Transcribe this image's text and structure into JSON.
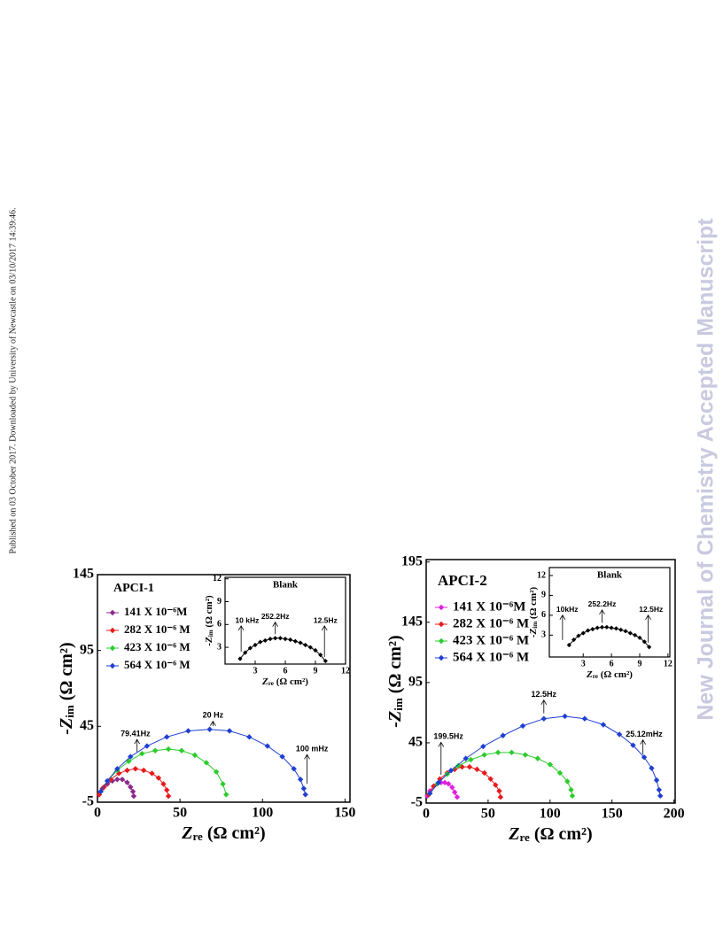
{
  "side_note": "Published on 03 October 2017. Downloaded by University of Newcastle on 03/10/2017 14:39:46.",
  "watermark": "New Journal of Chemistry Accepted Manuscript",
  "chart_data": [
    {
      "type": "line",
      "title": "APCI-1",
      "x_label": [
        "Z",
        "re",
        " (Ω cm²)"
      ],
      "y_label": [
        "-Z",
        "im",
        " (Ω cm²)"
      ],
      "xlim": [
        0,
        153
      ],
      "ylim": [
        -5,
        145
      ],
      "xticks": [
        0,
        50,
        100,
        150
      ],
      "yticks": [
        -5,
        45,
        95,
        145
      ],
      "series": [
        {
          "name": "141 X 10⁻⁶M",
          "color": "#8b2a8b",
          "x": [
            1,
            3,
            6,
            9,
            12,
            15,
            18,
            20,
            21.5,
            22
          ],
          "values": [
            0,
            4,
            7,
            9,
            10,
            10,
            8,
            5,
            2,
            -1
          ]
        },
        {
          "name": "282 X 10⁻⁶ M",
          "color": "#e8191e",
          "x": [
            1,
            4,
            8,
            13,
            18,
            23,
            28,
            33,
            37,
            40,
            42,
            43
          ],
          "values": [
            0,
            5,
            10,
            14,
            16,
            17,
            16,
            14,
            11,
            7,
            3,
            -1
          ]
        },
        {
          "name": "423 X 10⁻⁶ M",
          "color": "#2ccc2c",
          "x": [
            2,
            6,
            12,
            19,
            27,
            35,
            43,
            51,
            59,
            66,
            72,
            76,
            78
          ],
          "values": [
            2,
            9,
            16,
            22,
            27,
            29,
            30,
            29,
            26,
            21,
            15,
            7,
            0
          ]
        },
        {
          "name": "564 X 10⁻⁶ M",
          "color": "#1f3fd1",
          "x": [
            2,
            6,
            12,
            20,
            30,
            42,
            55,
            68,
            80,
            92,
            103,
            112,
            119,
            123,
            125,
            126
          ],
          "values": [
            2,
            9,
            17,
            25,
            32,
            38,
            42,
            43,
            42,
            38,
            32,
            25,
            17,
            10,
            4,
            0
          ]
        }
      ],
      "annotations": [
        "79.41Hz",
        "20 Hz",
        "100 mHz"
      ],
      "inset": {
        "title": "Blank",
        "x_label": [
          "Z",
          "re",
          " (Ω cm²)"
        ],
        "y_label": [
          "-Z",
          "im",
          " (Ω cm²)"
        ],
        "xlim": [
          0,
          12
        ],
        "ylim": [
          0.8,
          12.2
        ],
        "xticks": [
          3,
          6,
          9,
          12
        ],
        "yticks": [
          3,
          6,
          9,
          12
        ],
        "series": [
          {
            "color": "#000000",
            "x": [
              1.5,
              2,
              2.5,
              3,
              3.5,
              4,
              4.5,
              5,
              5.5,
              6,
              6.5,
              7,
              7.5,
              8,
              8.5,
              9,
              9.5,
              10
            ],
            "values": [
              1.5,
              2.3,
              2.9,
              3.3,
              3.7,
              3.9,
              4.1,
              4.2,
              4.2,
              4.1,
              4.0,
              3.8,
              3.6,
              3.3,
              3.0,
              2.6,
              2.0,
              1.2
            ]
          }
        ],
        "annotations": [
          "10 kHz",
          "252.2Hz",
          "12.5Hz"
        ]
      }
    },
    {
      "type": "line",
      "title": "APCI-2",
      "x_label": [
        "Z",
        "re",
        " (Ω cm²)"
      ],
      "y_label": [
        "-Z",
        "im",
        " (Ω cm²)"
      ],
      "xlim": [
        0,
        201
      ],
      "ylim": [
        -5,
        197
      ],
      "xticks": [
        0,
        50,
        100,
        150,
        200
      ],
      "yticks": [
        -5,
        45,
        95,
        145,
        195
      ],
      "series": [
        {
          "name": "141 X 10⁻⁶M",
          "color": "#e020e0",
          "x": [
            1,
            3,
            6,
            9,
            12,
            15,
            18,
            21,
            23,
            25
          ],
          "values": [
            1,
            5,
            9,
            11,
            12,
            12,
            11,
            8,
            4,
            0
          ]
        },
        {
          "name": "282 X 10⁻⁶ M",
          "color": "#e8191e",
          "x": [
            2,
            6,
            11,
            17,
            23,
            29,
            35,
            41,
            47,
            52,
            56,
            59,
            60
          ],
          "values": [
            2,
            9,
            15,
            20,
            23,
            25,
            25,
            23,
            20,
            15,
            10,
            5,
            0
          ]
        },
        {
          "name": "423 X 10⁻⁶ M",
          "color": "#2ccc2c",
          "x": [
            3,
            9,
            17,
            26,
            36,
            47,
            58,
            69,
            80,
            90,
            100,
            108,
            114,
            117,
            118
          ],
          "values": [
            3,
            11,
            19,
            26,
            31,
            35,
            37,
            37,
            35,
            32,
            27,
            20,
            13,
            6,
            1
          ]
        },
        {
          "name": "564 X 10⁻⁶ M",
          "color": "#1f3fd1",
          "x": [
            3,
            10,
            20,
            32,
            46,
            62,
            78,
            95,
            112,
            128,
            143,
            156,
            167,
            176,
            182,
            186,
            188,
            189
          ],
          "values": [
            3,
            12,
            22,
            32,
            42,
            51,
            59,
            65,
            67,
            65,
            60,
            52,
            43,
            33,
            24,
            14,
            6,
            1
          ]
        }
      ],
      "annotations": [
        "199.5Hz",
        "12.5Hz",
        "25.12mHz"
      ],
      "inset": {
        "title": "Blank",
        "x_label": [
          "Z",
          "re",
          " (Ω cm²)"
        ],
        "y_label": [
          "-Z",
          "im",
          " (Ω cm²)"
        ],
        "xlim": [
          -0.6,
          12.2
        ],
        "ylim": [
          -0.3,
          13.2
        ],
        "xticks": [
          3,
          6,
          9,
          12
        ],
        "yticks": [
          3,
          6,
          9,
          12
        ],
        "series": [
          {
            "color": "#000000",
            "x": [
              1.5,
              2,
              2.5,
              3,
              3.5,
              4,
              4.5,
              5,
              5.5,
              6,
              6.5,
              7,
              7.5,
              8,
              8.5,
              9,
              9.5,
              10
            ],
            "values": [
              1.5,
              2.3,
              2.9,
              3.3,
              3.7,
              3.9,
              4.1,
              4.2,
              4.2,
              4.1,
              4.0,
              3.8,
              3.6,
              3.3,
              3.0,
              2.6,
              2.0,
              1.2
            ]
          }
        ],
        "annotations": [
          "10kHz",
          "252.2Hz",
          "12.5Hz"
        ]
      }
    }
  ]
}
